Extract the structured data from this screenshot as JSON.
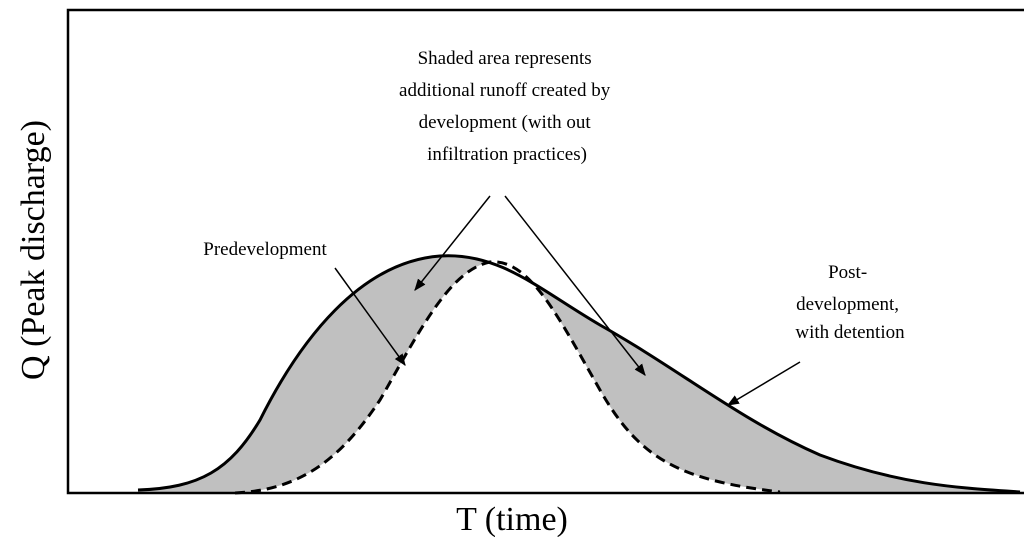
{
  "axes": {
    "y_label": "Q (Peak discharge)",
    "x_label": "T (time)"
  },
  "labels": {
    "predevelopment": "Predevelopment",
    "shaded_area": [
      "Shaded area represents",
      "additional runoff created by",
      "development (with out",
      "infiltration practices)"
    ],
    "post_development": [
      "Post-",
      "development,",
      "with detention"
    ]
  }
}
